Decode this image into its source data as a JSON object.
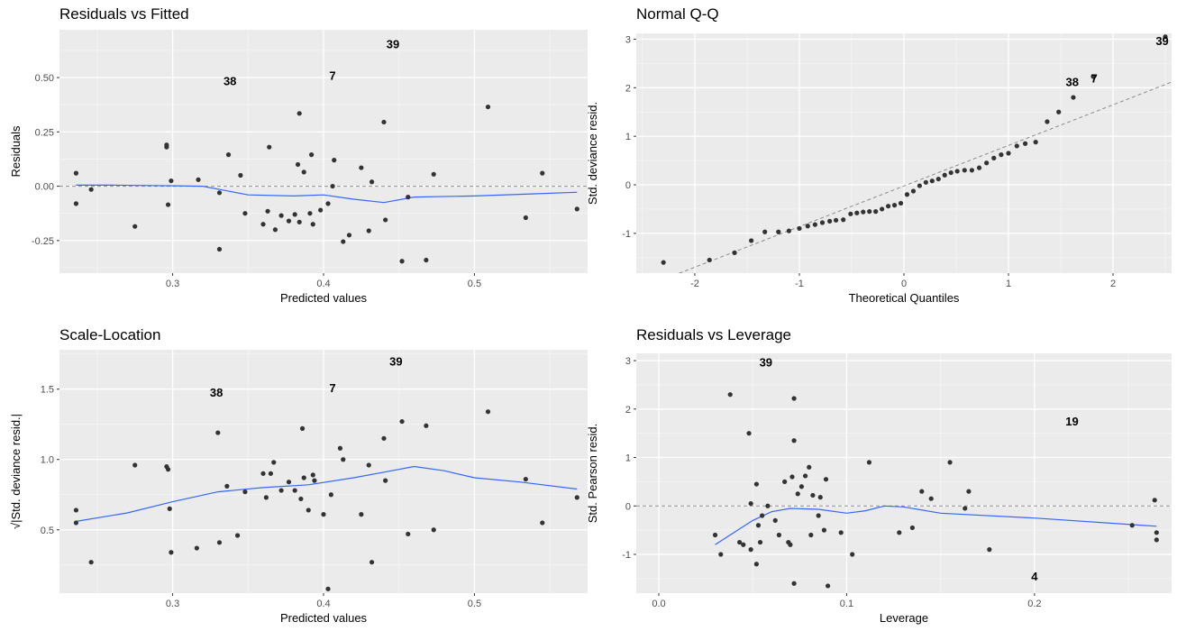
{
  "chart_data": [
    {
      "type": "scatter",
      "title": "Residuals vs Fitted",
      "xlabel": "Predicted values",
      "ylabel": "Residuals",
      "xlim": [
        0.225,
        0.575
      ],
      "ylim": [
        -0.4,
        0.72
      ],
      "xticks": [
        0.3,
        0.4,
        0.5
      ],
      "yticks": [
        -0.25,
        0.0,
        0.25,
        0.5
      ],
      "tick_labels_x": [
        "0.3",
        "0.4",
        "0.5"
      ],
      "tick_labels_y": [
        "-0.25",
        "0.00",
        "0.25",
        "0.50"
      ],
      "hline": 0,
      "grid": true,
      "points": [
        [
          0.236,
          0.06
        ],
        [
          0.236,
          -0.08
        ],
        [
          0.246,
          -0.015
        ],
        [
          0.275,
          -0.185
        ],
        [
          0.296,
          0.19
        ],
        [
          0.296,
          0.18
        ],
        [
          0.297,
          -0.085
        ],
        [
          0.299,
          0.025
        ],
        [
          0.317,
          0.03
        ],
        [
          0.331,
          -0.03
        ],
        [
          0.331,
          -0.29
        ],
        [
          0.337,
          0.145
        ],
        [
          0.345,
          0.05
        ],
        [
          0.348,
          -0.125
        ],
        [
          0.36,
          -0.175
        ],
        [
          0.363,
          -0.115
        ],
        [
          0.364,
          0.18
        ],
        [
          0.368,
          -0.2
        ],
        [
          0.372,
          -0.135
        ],
        [
          0.377,
          -0.16
        ],
        [
          0.381,
          -0.13
        ],
        [
          0.383,
          0.1
        ],
        [
          0.384,
          -0.165
        ],
        [
          0.384,
          0.335
        ],
        [
          0.387,
          0.065
        ],
        [
          0.391,
          -0.125
        ],
        [
          0.392,
          0.145
        ],
        [
          0.393,
          -0.175
        ],
        [
          0.398,
          -0.11
        ],
        [
          0.403,
          -0.08
        ],
        [
          0.406,
          0.0
        ],
        [
          0.407,
          0.12
        ],
        [
          0.413,
          -0.255
        ],
        [
          0.417,
          -0.225
        ],
        [
          0.425,
          0.085
        ],
        [
          0.43,
          -0.205
        ],
        [
          0.432,
          0.02
        ],
        [
          0.44,
          0.295
        ],
        [
          0.441,
          -0.155
        ],
        [
          0.452,
          -0.345
        ],
        [
          0.456,
          -0.05
        ],
        [
          0.468,
          -0.34
        ],
        [
          0.473,
          0.055
        ],
        [
          0.509,
          0.365
        ],
        [
          0.534,
          -0.145
        ],
        [
          0.545,
          0.06
        ],
        [
          0.568,
          -0.105
        ]
      ],
      "smooth": [
        [
          0.236,
          0.005
        ],
        [
          0.26,
          0.005
        ],
        [
          0.3,
          0.002
        ],
        [
          0.32,
          0.0
        ],
        [
          0.35,
          -0.04
        ],
        [
          0.38,
          -0.045
        ],
        [
          0.4,
          -0.04
        ],
        [
          0.42,
          -0.06
        ],
        [
          0.44,
          -0.075
        ],
        [
          0.46,
          -0.05
        ],
        [
          0.5,
          -0.045
        ],
        [
          0.54,
          -0.035
        ],
        [
          0.568,
          -0.028
        ]
      ],
      "labels": [
        {
          "text": "39",
          "x": 0.446,
          "y": 0.655
        },
        {
          "text": "38",
          "x": 0.338,
          "y": 0.485
        },
        {
          "text": "7",
          "x": 0.406,
          "y": 0.51
        }
      ]
    },
    {
      "type": "scatter",
      "title": "Normal Q-Q",
      "xlabel": "Theoretical Quantiles",
      "ylabel": "Std. deviance resid.",
      "xlim": [
        -2.56,
        2.56
      ],
      "ylim": [
        -1.82,
        3.12
      ],
      "xticks": [
        -2,
        -1,
        0,
        1,
        2
      ],
      "yticks": [
        -1,
        0,
        1,
        2,
        3
      ],
      "tick_labels_x": [
        "-2",
        "-1",
        "0",
        "1",
        "2"
      ],
      "tick_labels_y": [
        "-1",
        "0",
        "1",
        "2",
        "3"
      ],
      "refline": [
        [
          -2.6,
          -2.2
        ],
        [
          2.6,
          2.15
        ]
      ],
      "grid": true,
      "points": [
        [
          -2.3,
          -1.6
        ],
        [
          -1.86,
          -1.55
        ],
        [
          -1.62,
          -1.4
        ],
        [
          -1.46,
          -1.15
        ],
        [
          -1.33,
          -0.97
        ],
        [
          -1.2,
          -0.97
        ],
        [
          -1.1,
          -0.95
        ],
        [
          -1.0,
          -0.9
        ],
        [
          -0.92,
          -0.85
        ],
        [
          -0.85,
          -0.82
        ],
        [
          -0.78,
          -0.78
        ],
        [
          -0.71,
          -0.75
        ],
        [
          -0.65,
          -0.73
        ],
        [
          -0.58,
          -0.72
        ],
        [
          -0.51,
          -0.6
        ],
        [
          -0.45,
          -0.58
        ],
        [
          -0.39,
          -0.56
        ],
        [
          -0.33,
          -0.55
        ],
        [
          -0.27,
          -0.55
        ],
        [
          -0.21,
          -0.5
        ],
        [
          -0.15,
          -0.44
        ],
        [
          -0.09,
          -0.42
        ],
        [
          -0.03,
          -0.38
        ],
        [
          0.03,
          -0.2
        ],
        [
          0.09,
          -0.13
        ],
        [
          0.15,
          -0.02
        ],
        [
          0.21,
          0.05
        ],
        [
          0.27,
          0.08
        ],
        [
          0.33,
          0.12
        ],
        [
          0.39,
          0.2
        ],
        [
          0.45,
          0.25
        ],
        [
          0.51,
          0.28
        ],
        [
          0.58,
          0.3
        ],
        [
          0.65,
          0.3
        ],
        [
          0.72,
          0.35
        ],
        [
          0.79,
          0.45
        ],
        [
          0.86,
          0.55
        ],
        [
          0.93,
          0.62
        ],
        [
          1.0,
          0.65
        ],
        [
          1.08,
          0.8
        ],
        [
          1.16,
          0.85
        ],
        [
          1.26,
          0.88
        ],
        [
          1.37,
          1.3
        ],
        [
          1.48,
          1.5
        ],
        [
          1.62,
          1.8
        ],
        [
          1.81,
          2.23
        ],
        [
          2.5,
          3.05
        ]
      ],
      "labels": [
        {
          "text": "39",
          "x": 2.47,
          "y": 2.97
        },
        {
          "text": "38",
          "x": 1.61,
          "y": 2.13
        },
        {
          "text": "7",
          "x": 1.82,
          "y": 2.2
        }
      ]
    },
    {
      "type": "scatter",
      "title": "Scale-Location",
      "xlabel": "Predicted values",
      "ylabel": "√|Std. deviance resid.|",
      "xlim": [
        0.225,
        0.575
      ],
      "ylim": [
        0.05,
        1.78
      ],
      "xticks": [
        0.3,
        0.4,
        0.5
      ],
      "yticks": [
        0.5,
        1.0,
        1.5
      ],
      "tick_labels_x": [
        "0.3",
        "0.4",
        "0.5"
      ],
      "tick_labels_y": [
        "0.5",
        "1.0",
        "1.5"
      ],
      "grid": true,
      "points": [
        [
          0.236,
          0.64
        ],
        [
          0.236,
          0.55
        ],
        [
          0.246,
          0.27
        ],
        [
          0.275,
          0.96
        ],
        [
          0.296,
          0.95
        ],
        [
          0.297,
          0.93
        ],
        [
          0.298,
          0.65
        ],
        [
          0.299,
          0.34
        ],
        [
          0.316,
          0.37
        ],
        [
          0.33,
          1.19
        ],
        [
          0.331,
          0.41
        ],
        [
          0.336,
          0.81
        ],
        [
          0.343,
          0.46
        ],
        [
          0.348,
          0.77
        ],
        [
          0.36,
          0.9
        ],
        [
          0.362,
          0.73
        ],
        [
          0.365,
          0.9
        ],
        [
          0.367,
          0.98
        ],
        [
          0.372,
          0.78
        ],
        [
          0.377,
          0.84
        ],
        [
          0.381,
          0.78
        ],
        [
          0.385,
          0.72
        ],
        [
          0.386,
          1.22
        ],
        [
          0.387,
          0.87
        ],
        [
          0.39,
          0.64
        ],
        [
          0.393,
          0.89
        ],
        [
          0.394,
          0.85
        ],
        [
          0.4,
          0.61
        ],
        [
          0.403,
          0.08
        ],
        [
          0.405,
          0.75
        ],
        [
          0.411,
          1.08
        ],
        [
          0.413,
          1.0
        ],
        [
          0.425,
          0.61
        ],
        [
          0.43,
          0.96
        ],
        [
          0.432,
          0.27
        ],
        [
          0.44,
          1.15
        ],
        [
          0.441,
          0.85
        ],
        [
          0.452,
          1.27
        ],
        [
          0.456,
          0.47
        ],
        [
          0.468,
          1.24
        ],
        [
          0.473,
          0.5
        ],
        [
          0.509,
          1.34
        ],
        [
          0.534,
          0.86
        ],
        [
          0.545,
          0.55
        ],
        [
          0.568,
          0.73
        ]
      ],
      "smooth": [
        [
          0.236,
          0.56
        ],
        [
          0.27,
          0.62
        ],
        [
          0.3,
          0.7
        ],
        [
          0.33,
          0.77
        ],
        [
          0.36,
          0.8
        ],
        [
          0.39,
          0.82
        ],
        [
          0.42,
          0.87
        ],
        [
          0.44,
          0.91
        ],
        [
          0.46,
          0.95
        ],
        [
          0.48,
          0.92
        ],
        [
          0.5,
          0.87
        ],
        [
          0.53,
          0.84
        ],
        [
          0.568,
          0.79
        ]
      ],
      "labels": [
        {
          "text": "39",
          "x": 0.448,
          "y": 1.7
        },
        {
          "text": "38",
          "x": 0.329,
          "y": 1.48
        },
        {
          "text": "7",
          "x": 0.406,
          "y": 1.51
        }
      ]
    },
    {
      "type": "scatter",
      "title": "Residuals vs Leverage",
      "xlabel": "Leverage",
      "ylabel": "Std. Pearson resid.",
      "xlim": [
        -0.012,
        0.273
      ],
      "ylim": [
        -1.8,
        3.15
      ],
      "xticks": [
        0.0,
        0.1,
        0.2
      ],
      "yticks": [
        -1,
        0,
        1,
        2,
        3
      ],
      "tick_labels_x": [
        "0.0",
        "0.1",
        "0.2"
      ],
      "tick_labels_y": [
        "-1",
        "0",
        "1",
        "2",
        "3"
      ],
      "hline": 0,
      "grid": true,
      "points": [
        [
          0.03,
          -0.6
        ],
        [
          0.033,
          -1.0
        ],
        [
          0.038,
          2.3
        ],
        [
          0.043,
          -0.75
        ],
        [
          0.045,
          -0.8
        ],
        [
          0.048,
          1.5
        ],
        [
          0.049,
          -0.9
        ],
        [
          0.049,
          0.05
        ],
        [
          0.052,
          0.45
        ],
        [
          0.052,
          -1.2
        ],
        [
          0.053,
          -0.4
        ],
        [
          0.054,
          -0.75
        ],
        [
          0.055,
          -0.2
        ],
        [
          0.058,
          0.0
        ],
        [
          0.062,
          -0.3
        ],
        [
          0.064,
          -0.6
        ],
        [
          0.067,
          0.5
        ],
        [
          0.069,
          -0.75
        ],
        [
          0.07,
          -0.8
        ],
        [
          0.071,
          0.6
        ],
        [
          0.072,
          2.22
        ],
        [
          0.072,
          1.35
        ],
        [
          0.072,
          -1.6
        ],
        [
          0.074,
          0.25
        ],
        [
          0.076,
          0.4
        ],
        [
          0.078,
          0.62
        ],
        [
          0.08,
          0.8
        ],
        [
          0.081,
          -0.6
        ],
        [
          0.082,
          0.22
        ],
        [
          0.085,
          -0.2
        ],
        [
          0.086,
          0.18
        ],
        [
          0.088,
          -0.5
        ],
        [
          0.089,
          0.55
        ],
        [
          0.09,
          -1.65
        ],
        [
          0.097,
          -0.55
        ],
        [
          0.103,
          -1.0
        ],
        [
          0.112,
          0.9
        ],
        [
          0.128,
          -0.55
        ],
        [
          0.135,
          -0.45
        ],
        [
          0.14,
          0.3
        ],
        [
          0.145,
          0.15
        ],
        [
          0.155,
          0.9
        ],
        [
          0.163,
          -0.05
        ],
        [
          0.165,
          0.3
        ],
        [
          0.176,
          -0.9
        ],
        [
          0.252,
          -0.4
        ],
        [
          0.264,
          0.12
        ],
        [
          0.265,
          -0.55
        ],
        [
          0.265,
          -0.7
        ]
      ],
      "smooth": [
        [
          0.03,
          -0.8
        ],
        [
          0.04,
          -0.55
        ],
        [
          0.05,
          -0.3
        ],
        [
          0.06,
          -0.12
        ],
        [
          0.07,
          -0.05
        ],
        [
          0.085,
          -0.07
        ],
        [
          0.1,
          -0.15
        ],
        [
          0.11,
          -0.1
        ],
        [
          0.12,
          0.0
        ],
        [
          0.13,
          -0.02
        ],
        [
          0.15,
          -0.15
        ],
        [
          0.2,
          -0.25
        ],
        [
          0.265,
          -0.42
        ]
      ],
      "labels": [
        {
          "text": "39",
          "x": 0.057,
          "y": 2.97
        },
        {
          "text": "19",
          "x": 0.22,
          "y": 1.75
        },
        {
          "text": "4",
          "x": 0.2,
          "y": -1.45
        }
      ]
    }
  ]
}
